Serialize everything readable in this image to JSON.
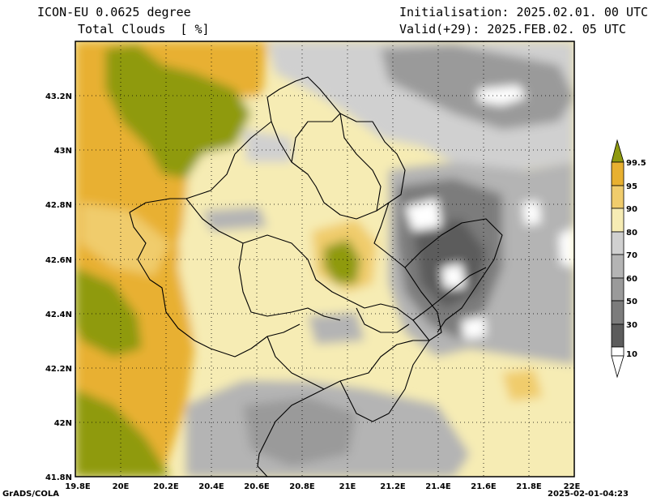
{
  "header": {
    "model": "ICON-EU 0.0625 degree",
    "variable": "Total Clouds  [ %]",
    "init": "Initialisation: 2025.02.01. 00 UTC",
    "valid": "Valid(+29): 2025.FEB.02. 05 UTC"
  },
  "footer": {
    "left": "GrADS/COLA",
    "right": "2025-02-01-04:23"
  },
  "axes": {
    "lat_labels": [
      "43.2N",
      "43N",
      "42.8N",
      "42.6N",
      "42.4N",
      "42.2N",
      "42N",
      "41.8N"
    ],
    "lon_labels": [
      "19.8E",
      "20E",
      "20.2E",
      "20.4E",
      "20.6E",
      "20.8E",
      "21E",
      "21.2E",
      "21.4E",
      "21.6E",
      "21.8E",
      "22E"
    ]
  },
  "colorbar": {
    "labels": [
      "99.5",
      "95",
      "90",
      "80",
      "70",
      "60",
      "50",
      "30",
      "10"
    ],
    "colors": {
      "c99": "#8f9a0f",
      "c95": "#e8b030",
      "c90": "#f0cc6c",
      "c80": "#f6ecb4",
      "c70": "#d0d0d0",
      "c60": "#b4b4b4",
      "c50": "#9a9a9a",
      "c30": "#7c7c7c",
      "c10": "#5c5c5c",
      "c0": "#ffffff"
    }
  }
}
